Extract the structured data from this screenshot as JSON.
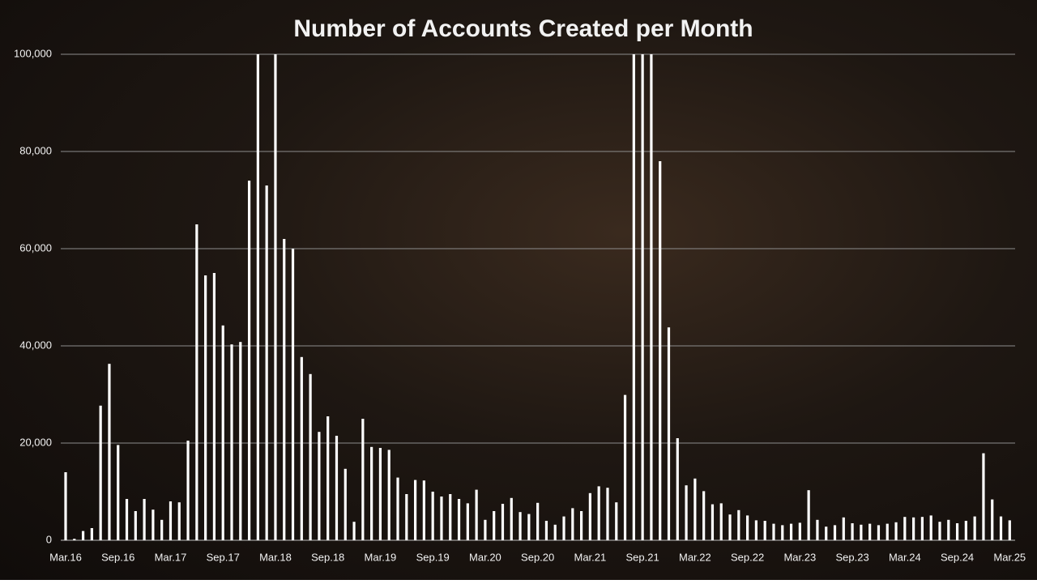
{
  "chart_data": {
    "type": "bar",
    "title": "Number of Accounts Created per Month",
    "categories": [
      "Mar.16",
      null,
      null,
      null,
      null,
      null,
      "Sep.16",
      null,
      null,
      null,
      null,
      null,
      "Mar.17",
      null,
      null,
      null,
      null,
      null,
      "Sep.17",
      null,
      null,
      null,
      null,
      null,
      "Mar.18",
      null,
      null,
      null,
      null,
      null,
      "Sep.18",
      null,
      null,
      null,
      null,
      null,
      "Mar.19",
      null,
      null,
      null,
      null,
      null,
      "Sep.19",
      null,
      null,
      null,
      null,
      null,
      "Mar.20",
      null,
      null,
      null,
      null,
      null,
      "Sep.20",
      null,
      null,
      null,
      null,
      null,
      "Mar.21",
      null,
      null,
      null,
      null,
      null,
      "Sep.21",
      null,
      null,
      null,
      null,
      null,
      "Mar.22",
      null,
      null,
      null,
      null,
      null,
      "Sep.22",
      null,
      null,
      null,
      null,
      null,
      "Mar.23",
      null,
      null,
      null,
      null,
      null,
      "Sep.23",
      null,
      null,
      null,
      null,
      null,
      "Mar.24",
      null,
      null,
      null,
      null,
      null,
      "Sep.24",
      null,
      null,
      null,
      null,
      null,
      "Mar.25"
    ],
    "values": [
      14000,
      300,
      1900,
      2500,
      27700,
      36300,
      19600,
      8500,
      6000,
      8500,
      6300,
      4200,
      8000,
      7800,
      20500,
      65000,
      54500,
      55000,
      44200,
      40300,
      40800,
      74000,
      100000,
      73000,
      100000,
      62000,
      60000,
      37700,
      34200,
      22300,
      25500,
      21500,
      14700,
      3800,
      25000,
      19200,
      19000,
      18600,
      12900,
      9500,
      12400,
      12300,
      10000,
      9000,
      9500,
      8500,
      7600,
      10400,
      4200,
      6000,
      7500,
      8700,
      5800,
      5400,
      7700,
      4000,
      3200,
      4900,
      6600,
      6000,
      9700,
      11100,
      10800,
      7800,
      29900,
      100000,
      100000,
      100000,
      78000,
      43800,
      21000,
      11300,
      12700,
      10100,
      7400,
      7600,
      5300,
      6200,
      5100,
      4100,
      4000,
      3400,
      3100,
      3400,
      3600,
      10300,
      4200,
      2800,
      3100,
      4700,
      3500,
      3200,
      3400,
      3100,
      3400,
      3700,
      4800,
      4700,
      4800,
      5100,
      3800,
      4200,
      3500,
      4000,
      4900,
      17900,
      8400,
      4900,
      4100
    ],
    "color": "#ffffff",
    "ylim": [
      0,
      100000
    ],
    "yticks": [
      0,
      {
        "value": 20000,
        "label": "20,000"
      },
      {
        "value": 40000,
        "label": "40,000"
      },
      {
        "value": 60000,
        "label": "60,000"
      },
      {
        "value": 80000,
        "label": "80,000"
      },
      {
        "value": 100000,
        "label": "100,000"
      }
    ],
    "grid": true
  }
}
